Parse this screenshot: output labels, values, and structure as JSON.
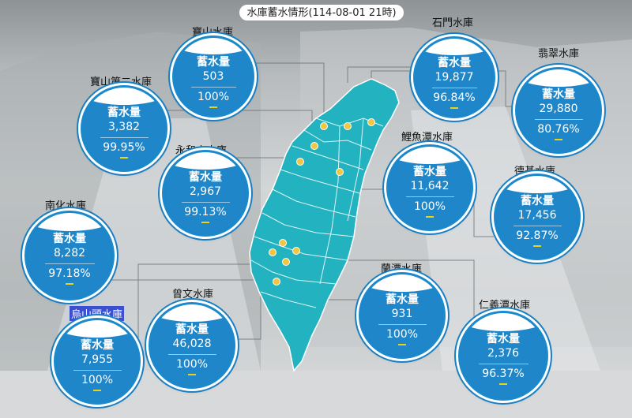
{
  "title": "水庫蓄水情形(114-08-01 21時)",
  "label_text": "蓄水量",
  "colors": {
    "circle_fill": "#0d6fb8",
    "ring": "#1b89cc",
    "map": "#23b2bf",
    "dot": "#f2c641",
    "selection": "#3b4fd1"
  },
  "reservoirs": [
    {
      "name": "寶山水庫",
      "volume": "503",
      "percent": "100%"
    },
    {
      "name": "石門水庫",
      "volume": "19,877",
      "percent": "96.84%"
    },
    {
      "name": "翡翠水庫",
      "volume": "29,880",
      "percent": "80.76%"
    },
    {
      "name": "寶山第二水庫",
      "volume": "3,382",
      "percent": "99.95%"
    },
    {
      "name": "永和山水庫",
      "volume": "2,967",
      "percent": "99.13%"
    },
    {
      "name": "鯉魚潭水庫",
      "volume": "11,642",
      "percent": "100%"
    },
    {
      "name": "德基水庫",
      "volume": "17,456",
      "percent": "92.87%"
    },
    {
      "name": "南化水庫",
      "volume": "8,282",
      "percent": "97.18%"
    },
    {
      "name": "蘭潭水庫",
      "volume": "931",
      "percent": "100%"
    },
    {
      "name": "曾文水庫",
      "volume": "46,028",
      "percent": "100%"
    },
    {
      "name": "烏山頭水庫",
      "volume": "7,955",
      "percent": "100%"
    },
    {
      "name": "仁義潭水庫",
      "volume": "2,376",
      "percent": "96.37%"
    }
  ]
}
